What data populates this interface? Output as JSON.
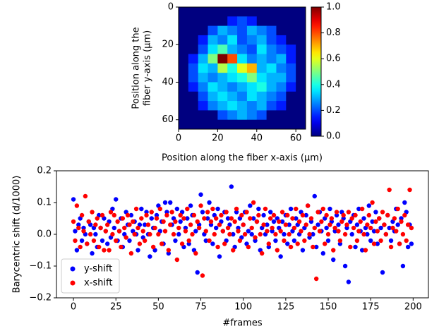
{
  "chart_data": [
    {
      "type": "heatmap",
      "xlabel": "Position along the fiber x-axis (µm)",
      "ylabel": [
        "Position along the",
        "fiber y-axis (µm)"
      ],
      "xlim": [
        0,
        65
      ],
      "ylim": [
        65,
        0
      ],
      "xticks": [
        0,
        20,
        40,
        60
      ],
      "yticks": [
        0,
        20,
        40,
        60
      ],
      "colormap": "jet",
      "colorbar": {
        "lim": [
          0,
          1
        ],
        "ticks": [
          {
            "value": 0,
            "label": "0.0"
          },
          0.2,
          0.4,
          0.6,
          0.8,
          {
            "value": 1,
            "label": "1.0"
          }
        ]
      },
      "z": [
        [
          0,
          0,
          0,
          0,
          0,
          0,
          0,
          0,
          0,
          0,
          0,
          0,
          0
        ],
        [
          0,
          0,
          0,
          0,
          0,
          0.15,
          0.2,
          0.15,
          0,
          0,
          0,
          0,
          0
        ],
        [
          0,
          0,
          0,
          0.2,
          0.3,
          0.25,
          0.2,
          0.3,
          0.25,
          0.2,
          0,
          0,
          0
        ],
        [
          0,
          0,
          0.15,
          0.3,
          0.25,
          0.35,
          0.2,
          0.25,
          0.3,
          0.2,
          0.15,
          0,
          0
        ],
        [
          0,
          0,
          0.2,
          0.35,
          0.45,
          0.3,
          0.25,
          0.2,
          0.35,
          0.25,
          0.2,
          0.15,
          0
        ],
        [
          0,
          0.15,
          0.3,
          0.5,
          1.0,
          0.8,
          0.35,
          0.25,
          0.3,
          0.25,
          0.3,
          0.15,
          0
        ],
        [
          0,
          0.2,
          0.35,
          0.3,
          0.55,
          0.4,
          0.6,
          0.7,
          0.3,
          0.35,
          0.25,
          0.2,
          0
        ],
        [
          0,
          0.2,
          0.3,
          0.25,
          0.3,
          0.35,
          0.4,
          0.5,
          0.35,
          0.3,
          0.3,
          0.2,
          0
        ],
        [
          0,
          0.15,
          0.25,
          0.35,
          0.3,
          0.25,
          0.3,
          0.35,
          0.4,
          0.3,
          0.25,
          0.15,
          0
        ],
        [
          0,
          0,
          0.2,
          0.3,
          0.35,
          0.3,
          0.25,
          0.35,
          0.3,
          0.25,
          0.2,
          0,
          0
        ],
        [
          0,
          0,
          0.15,
          0.25,
          0.3,
          0.35,
          0.3,
          0.25,
          0.3,
          0.2,
          0.15,
          0,
          0
        ],
        [
          0,
          0,
          0,
          0,
          0.2,
          0.25,
          0.3,
          0.25,
          0.2,
          0,
          0,
          0,
          0
        ],
        [
          0,
          0,
          0,
          0,
          0,
          0,
          0,
          0,
          0,
          0,
          0,
          0,
          0
        ]
      ]
    },
    {
      "type": "scatter",
      "xlabel": "#frames",
      "ylabel": "Barycentric shift (d/1000)",
      "xlim": [
        -10,
        209
      ],
      "ylim": [
        -0.2,
        0.2
      ],
      "xticks": [
        0,
        25,
        50,
        75,
        100,
        125,
        150,
        175,
        200
      ],
      "yticks": [
        {
          "value": -0.2,
          "label": "−0.2"
        },
        {
          "value": -0.1,
          "label": "−0.1"
        },
        {
          "value": 0,
          "label": "0.0"
        },
        0.1,
        0.2
      ],
      "legend": "lower left",
      "x": [
        0,
        1,
        2,
        3,
        4,
        5,
        6,
        7,
        8,
        9,
        10,
        11,
        12,
        13,
        14,
        15,
        16,
        17,
        18,
        19,
        20,
        21,
        22,
        23,
        24,
        25,
        26,
        27,
        28,
        29,
        30,
        31,
        32,
        33,
        34,
        35,
        36,
        37,
        38,
        39,
        40,
        41,
        42,
        43,
        44,
        45,
        46,
        47,
        48,
        49,
        50,
        51,
        52,
        53,
        54,
        55,
        56,
        57,
        58,
        59,
        60,
        61,
        62,
        63,
        64,
        65,
        66,
        67,
        68,
        69,
        70,
        71,
        72,
        73,
        74,
        75,
        76,
        77,
        78,
        79,
        80,
        81,
        82,
        83,
        84,
        85,
        86,
        87,
        88,
        89,
        90,
        91,
        92,
        93,
        94,
        95,
        96,
        97,
        98,
        99,
        100,
        101,
        102,
        103,
        104,
        105,
        106,
        107,
        108,
        109,
        110,
        111,
        112,
        113,
        114,
        115,
        116,
        117,
        118,
        119,
        120,
        121,
        122,
        123,
        124,
        125,
        126,
        127,
        128,
        129,
        130,
        131,
        132,
        133,
        134,
        135,
        136,
        137,
        138,
        139,
        140,
        141,
        142,
        143,
        144,
        145,
        146,
        147,
        148,
        149,
        150,
        151,
        152,
        153,
        154,
        155,
        156,
        157,
        158,
        159,
        160,
        161,
        162,
        163,
        164,
        165,
        166,
        167,
        168,
        169,
        170,
        171,
        172,
        173,
        174,
        175,
        176,
        177,
        178,
        179,
        180,
        181,
        182,
        183,
        184,
        185,
        186,
        187,
        188,
        189,
        190,
        191,
        192,
        193,
        194,
        195,
        196,
        197,
        198,
        199
      ],
      "series": [
        {
          "name": "y-shift",
          "color": "#0000ff",
          "values": [
            0.11,
            0.01,
            -0.05,
            0.03,
            0.05,
            -0.02,
            0.02,
            0.0,
            -0.03,
            0.04,
            0.03,
            -0.06,
            0.02,
            0.0,
            -0.04,
            0.06,
            0.02,
            -0.02,
            0.05,
            0.01,
            -0.03,
            0.04,
            -0.01,
            0.08,
            0.02,
            0.11,
            -0.02,
            0.01,
            0.05,
            -0.04,
            0.0,
            0.07,
            0.03,
            -0.02,
            0.06,
            0.01,
            0.04,
            0.0,
            -0.05,
            0.03,
            0.08,
            -0.01,
            0.03,
            0.07,
            0.0,
            -0.07,
            0.05,
            0.02,
            -0.05,
            0.06,
            0.09,
            0.01,
            0.04,
            -0.03,
            0.1,
            0.07,
            -0.06,
            0.1,
            0.03,
            0.05,
            -0.02,
            0.08,
            0.0,
            0.04,
            0.07,
            -0.04,
            0.02,
            0.05,
            -0.03,
            0.09,
            0.06,
            -0.05,
            0.01,
            -0.12,
            0.03,
            0.125,
            0.07,
            0.0,
            -0.02,
            0.05,
            0.1,
            0.03,
            -0.03,
            0.06,
            0.02,
            0.08,
            -0.07,
            0.04,
            0.01,
            0.07,
            -0.02,
            0.05,
            0.03,
            0.15,
            0.0,
            -0.04,
            0.07,
            0.02,
            0.05,
            -0.01,
            0.03,
            0.07,
            -0.03,
            0.01,
            0.09,
            0.0,
            0.05,
            -0.02,
            0.04,
            0.08,
            -0.05,
            0.02,
            0.06,
            0.0,
            0.03,
            -0.04,
            0.07,
            0.01,
            0.04,
            -0.02,
            0.05,
            0.02,
            -0.07,
            0.04,
            0.0,
            0.06,
            -0.03,
            0.03,
            0.08,
            0.01,
            -0.02,
            0.05,
            0.03,
            0.0,
            0.07,
            -0.05,
            0.02,
            0.06,
            0.09,
            -0.01,
            0.04,
            0.0,
            0.12,
            -0.04,
            0.03,
            0.07,
            0.01,
            -0.06,
            0.05,
            0.02,
            -0.02,
            0.08,
            0.04,
            -0.08,
            0.01,
            0.06,
            0.03,
            -0.03,
            0.07,
            0.05,
            -0.1,
            0.02,
            -0.15,
            0.04,
            0.0,
            0.06,
            -0.04,
            0.03,
            0.08,
            0.01,
            -0.05,
            0.05,
            0.02,
            0.0,
            0.09,
            -0.02,
            0.04,
            0.01,
            0.07,
            -0.03,
            0.05,
            0.02,
            -0.12,
            0.03,
            0.0,
            0.06,
            0.02,
            -0.02,
            0.04,
            0.01,
            0.08,
            0.03,
            -0.03,
            0.05,
            -0.1,
            0.1,
            0.07,
            -0.04,
            0.03,
            -0.03
          ]
        },
        {
          "name": "x-shift",
          "color": "#ff0000",
          "values": [
            0.04,
            -0.02,
            0.09,
            0.02,
            -0.04,
            0.06,
            0.01,
            0.12,
            -0.03,
            0.04,
            0.0,
            0.07,
            -0.02,
            0.03,
            0.05,
            -0.04,
            0.02,
            0.06,
            -0.05,
            0.01,
            0.03,
            -0.05,
            0.07,
            0.0,
            0.06,
            -0.02,
            0.04,
            0.01,
            -0.04,
            0.05,
            0.02,
            -0.01,
            0.06,
            0.03,
            -0.06,
            0.04,
            0.0,
            0.08,
            0.02,
            -0.03,
            0.05,
            0.01,
            -0.02,
            0.06,
            0.03,
            0.0,
            0.07,
            -0.04,
            0.02,
            0.05,
            0.0,
            0.08,
            -0.03,
            0.04,
            0.01,
            0.06,
            -0.05,
            0.03,
            0.07,
            0.0,
            0.04,
            -0.08,
            0.02,
            0.06,
            -0.03,
            0.05,
            0.01,
            0.08,
            -0.02,
            0.03,
            0.0,
            0.06,
            -0.06,
            0.04,
            0.02,
            0.09,
            -0.13,
            0.05,
            0.01,
            0.07,
            -0.02,
            0.04,
            0.08,
            0.0,
            0.05,
            -0.04,
            0.03,
            0.06,
            0.01,
            -0.03,
            0.07,
            0.02,
            0.0,
            0.05,
            -0.05,
            0.04,
            0.08,
            0.01,
            -0.02,
            0.06,
            0.03,
            0.0,
            0.07,
            -0.04,
            0.05,
            0.02,
            0.1,
            -0.01,
            0.04,
            0.06,
            0.0,
            -0.06,
            0.03,
            0.08,
            0.01,
            -0.03,
            0.05,
            0.02,
            0.06,
            0.0,
            -0.05,
            0.04,
            0.01,
            0.07,
            -0.02,
            0.03,
            0.06,
            0.0,
            -0.04,
            0.05,
            0.02,
            0.08,
            -0.03,
            0.04,
            0.01,
            0.06,
            -0.02,
            0.03,
            0.09,
            0.0,
            0.05,
            -0.04,
            0.02,
            -0.14,
            0.07,
            0.01,
            0.04,
            0.08,
            -0.03,
            0.06,
            0.0,
            0.03,
            0.05,
            -0.05,
            0.02,
            0.07,
            0.01,
            -0.02,
            0.04,
            0.06,
            0.0,
            0.03,
            0.07,
            -0.04,
            0.05,
            0.02,
            0.06,
            -0.02,
            0.01,
            0.04,
            0.08,
            0.0,
            -0.05,
            0.03,
            0.06,
            0.02,
            0.1,
            -0.03,
            0.04,
            0.01,
            0.05,
            -0.02,
            0.07,
            0.03,
            0.0,
            0.06,
            0.14,
            -0.04,
            0.02,
            0.05,
            0.01,
            0.08,
            -0.03,
            0.04,
            0.0,
            0.06,
            -0.02,
            0.03,
            0.14,
            0.02
          ]
        }
      ]
    }
  ]
}
